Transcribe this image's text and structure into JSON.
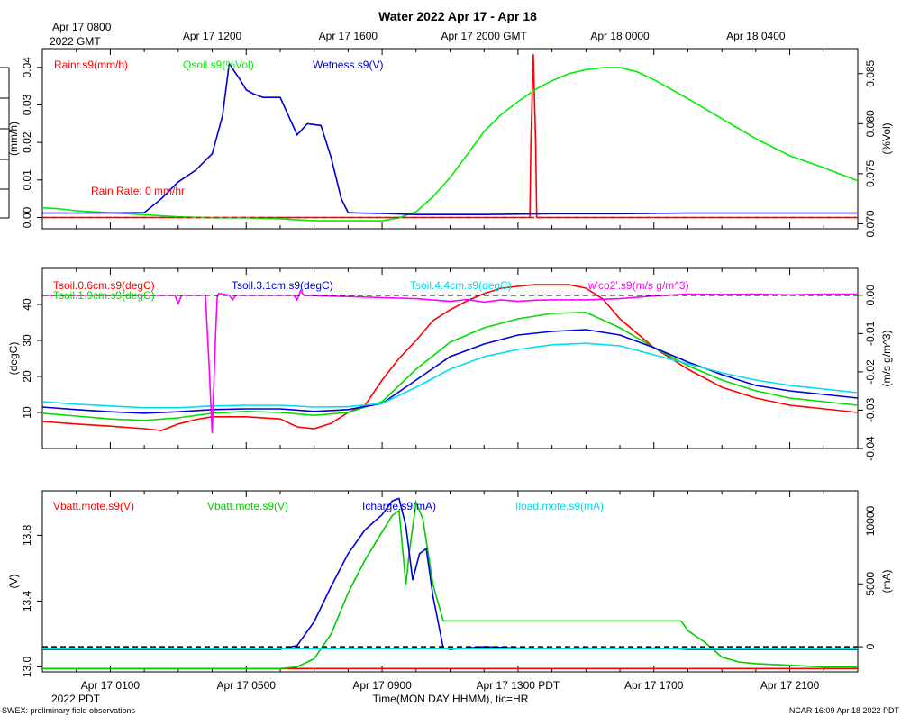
{
  "title": "Water 2022 Apr 17 - Apr 18",
  "top_axis": {
    "origin_line1": "Apr 17 0800",
    "origin_line2": "2022 GMT",
    "ticks": [
      "Apr 17 1200",
      "Apr 17 1600",
      "Apr 17 2000 GMT",
      "Apr 18 0000",
      "Apr 18 0400"
    ]
  },
  "bottom_axis": {
    "ticks": [
      "Apr 17 0100",
      "Apr 17 0500",
      "Apr 17 0900",
      "Apr 17 1300 PDT",
      "Apr 17 1700",
      "Apr 17 2100"
    ],
    "year": "2022 PDT",
    "label": "Time(MON DAY HHMM), tic=HR"
  },
  "footer": {
    "left": "SWEX: preliminary field observations",
    "right": "NCAR 16:09 Apr 18 2022 PDT"
  },
  "chart_data": [
    {
      "type": "line",
      "panel": "water",
      "x_unit": "hours since Apr 17 0000 PDT",
      "xlim": [
        -1,
        23
      ],
      "left_axis": {
        "label": "(mm/h)",
        "lim": [
          -0.003,
          0.045
        ],
        "ticks": [
          "0.00",
          "0.01",
          "0.02",
          "0.03",
          "0.04"
        ]
      },
      "right_axis": {
        "label": "(%Vol)",
        "lim": [
          0.0695,
          0.0875
        ],
        "ticks": [
          "0.070",
          "0.075",
          "0.080",
          "0.085"
        ]
      },
      "annotation": "Rain Rate: 0 mm/hr",
      "reference_line": {
        "axis": "left",
        "y": 0.0,
        "color": "#ff0000",
        "style": "dashed"
      },
      "series": [
        {
          "name": "Rainr.s9(mm/h)",
          "color": "#ff0000",
          "axis": "left",
          "x": [
            -1,
            13.35,
            13.38,
            13.45,
            13.52,
            13.55,
            23
          ],
          "values": [
            0,
            0,
            0.02,
            0.0435,
            0.02,
            0,
            0
          ]
        },
        {
          "name": "Qsoil.s9(%Vol)",
          "color": "#00ee00",
          "axis": "left_offset_right",
          "x": [
            -1,
            -0.5,
            0,
            1,
            2,
            3,
            4,
            5,
            6,
            7,
            8,
            9,
            9.5,
            10,
            10.5,
            11,
            11.5,
            12,
            12.5,
            13,
            13.5,
            14,
            14.5,
            15,
            15.5,
            16,
            16.5,
            17,
            18,
            19,
            20,
            21,
            22,
            23
          ],
          "values": [
            0.0716,
            0.0715,
            0.0713,
            0.0711,
            0.0709,
            0.0707,
            0.0706,
            0.0706,
            0.0705,
            0.0703,
            0.0703,
            0.0703,
            0.0706,
            0.0712,
            0.0727,
            0.0746,
            0.0769,
            0.0792,
            0.0809,
            0.0822,
            0.0834,
            0.0843,
            0.085,
            0.0854,
            0.0856,
            0.0856,
            0.0852,
            0.0844,
            0.0825,
            0.0805,
            0.0785,
            0.0768,
            0.0756,
            0.0743
          ]
        },
        {
          "name": "Wetness.s9(V)",
          "color": "#0000cc",
          "axis": "left",
          "x": [
            -1,
            0,
            1,
            2,
            2.5,
            3,
            3.5,
            4,
            4.3,
            4.5,
            4.8,
            5,
            5.2,
            5.5,
            6,
            6.3,
            6.5,
            6.8,
            7.2,
            7.5,
            7.8,
            8,
            8.3,
            9,
            10,
            12,
            14,
            16,
            18,
            20,
            22,
            23
          ],
          "values": [
            0.0012,
            0.0012,
            0.0012,
            0.0013,
            0.005,
            0.0095,
            0.0125,
            0.017,
            0.027,
            0.041,
            0.037,
            0.034,
            0.033,
            0.032,
            0.032,
            0.026,
            0.022,
            0.025,
            0.0245,
            0.016,
            0.005,
            0.0013,
            0.0012,
            0.0011,
            0.0008,
            0.0008,
            0.001,
            0.001,
            0.0012,
            0.0012,
            0.0012,
            0.0012
          ]
        }
      ]
    },
    {
      "type": "line",
      "panel": "soil_temperature",
      "x_unit": "hours since Apr 17 0000 PDT",
      "xlim": [
        -1,
        23
      ],
      "left_axis": {
        "label": "(degC)",
        "lim": [
          0,
          50
        ],
        "ticks": [
          "10",
          "20",
          "30",
          "40"
        ]
      },
      "right_axis": {
        "label": "(m/s g/m^3)",
        "lim": [
          -0.04,
          0.007
        ],
        "ticks": [
          "-0.04",
          "-0.03",
          "-0.02",
          "-0.01",
          "0.00"
        ]
      },
      "reference_line": {
        "axis": "right",
        "y": 0.0,
        "color": "#000000",
        "style": "dashed"
      },
      "series": [
        {
          "name": "Tsoil.0.6cm.s9(degC)",
          "color": "#ff0000",
          "axis": "left",
          "x": [
            -1,
            0,
            1,
            2,
            2.5,
            3,
            3.5,
            4,
            5,
            6,
            6.5,
            7,
            7.5,
            8,
            8.5,
            9,
            9.5,
            10,
            10.5,
            11,
            11.5,
            12,
            12.5,
            13,
            13.5,
            14,
            14.5,
            15,
            15.5,
            16,
            17,
            18,
            19,
            20,
            21,
            22,
            23
          ],
          "values": [
            7.5,
            6.8,
            6.2,
            5.5,
            5.0,
            6.8,
            8.0,
            8.8,
            8.8,
            8.2,
            6.0,
            5.5,
            7.0,
            10.0,
            12.0,
            19.0,
            25.0,
            30.0,
            35.5,
            38.5,
            41.0,
            43.0,
            44.5,
            45.0,
            45.5,
            45.5,
            45.5,
            44.5,
            41.5,
            36.0,
            28.0,
            22.0,
            17.0,
            14.0,
            12.0,
            11.0,
            10.0
          ]
        },
        {
          "name": "Tsoil.1.9cm.s9(degC)",
          "color": "#00dd00",
          "axis": "left",
          "x": [
            -1,
            0,
            1,
            2,
            3,
            4,
            5,
            6,
            7,
            8,
            9,
            10,
            11,
            12,
            13,
            14,
            15,
            16,
            17,
            18,
            19,
            20,
            21,
            22,
            23
          ],
          "values": [
            9.8,
            9.0,
            8.2,
            7.8,
            8.5,
            9.8,
            10.3,
            10.0,
            9.2,
            10.0,
            13.0,
            22.0,
            29.5,
            33.5,
            36.0,
            37.5,
            37.8,
            33.5,
            28.0,
            23.0,
            19.0,
            16.0,
            14.0,
            13.0,
            12.0
          ]
        },
        {
          "name": "Tsoil.3.1cm.s9(degC)",
          "color": "#0000dd",
          "axis": "left",
          "x": [
            -1,
            0,
            1,
            2,
            3,
            4,
            5,
            6,
            7,
            8,
            9,
            10,
            11,
            12,
            13,
            14,
            15,
            16,
            17,
            18,
            19,
            20,
            21,
            22,
            23
          ],
          "values": [
            11.5,
            10.8,
            10.2,
            9.8,
            10.2,
            10.8,
            11.0,
            11.0,
            10.3,
            10.8,
            12.5,
            19.0,
            25.5,
            29.0,
            31.5,
            32.5,
            33.0,
            31.5,
            28.0,
            24.0,
            20.5,
            17.5,
            16.0,
            15.0,
            14.0
          ]
        },
        {
          "name": "Tsoil.4.4cm.s9(degC)",
          "color": "#00ddee",
          "axis": "left",
          "x": [
            -1,
            0,
            1,
            2,
            3,
            4,
            5,
            6,
            7,
            8,
            9,
            10,
            11,
            12,
            13,
            14,
            15,
            16,
            17,
            18,
            19,
            20,
            21,
            22,
            23
          ],
          "values": [
            13.0,
            12.3,
            11.8,
            11.3,
            11.3,
            11.8,
            12.0,
            12.0,
            11.5,
            11.6,
            12.5,
            17.0,
            22.0,
            25.5,
            27.5,
            28.8,
            29.2,
            28.5,
            26.0,
            23.5,
            21.0,
            19.0,
            17.5,
            16.5,
            15.5
          ]
        },
        {
          "name": "w'co2'.s9(m/s g/m^3)",
          "color": "#ff00ff",
          "axis": "right",
          "x": [
            -1,
            2.9,
            3.0,
            3.1,
            3.8,
            3.9,
            4.0,
            4.1,
            4.15,
            4.2,
            4.5,
            4.6,
            4.7,
            6.4,
            6.5,
            6.6,
            6.7,
            10,
            11,
            11.5,
            12,
            12.5,
            13,
            13.5,
            14,
            15,
            16,
            17,
            18,
            19,
            20,
            21,
            22,
            23
          ],
          "values": [
            0.0,
            0.0,
            -0.0022,
            0.0,
            0.0,
            -0.017,
            -0.036,
            -0.01,
            0.0,
            0.0005,
            0.0,
            -0.0012,
            0.0,
            0.0,
            -0.0012,
            0.0012,
            0.0,
            -0.0009,
            -0.0016,
            -0.0011,
            -0.0018,
            -0.0012,
            -0.0016,
            -0.0013,
            -0.0012,
            -0.0012,
            -0.0009,
            -0.0002,
            0.0003,
            0.0002,
            0.0003,
            0.0001,
            0.0003,
            0.0003
          ]
        }
      ]
    },
    {
      "type": "line",
      "panel": "power",
      "x_unit": "hours since Apr 17 0000 PDT",
      "xlim": [
        -1,
        23
      ],
      "left_axis": {
        "label": "(V)",
        "lim": [
          12.97,
          14.07
        ],
        "ticks": [
          "13.0",
          "13.4",
          "13.8"
        ]
      },
      "right_axis": {
        "label": "(mA)",
        "lim": [
          -2000,
          12400
        ],
        "ticks": [
          "0",
          "5000",
          "10000"
        ]
      },
      "reference_line": {
        "axis": "right",
        "y": 0,
        "color": "#000000",
        "style": "dashed"
      },
      "series": [
        {
          "name": "Vbatt.mote.s9(V)",
          "color": "#ff0000",
          "axis": "left",
          "x": [
            -1,
            23
          ],
          "values": [
            12.99,
            12.99
          ]
        },
        {
          "name": "Vbatt.mote.s9(V)",
          "color": "#00cc00",
          "axis": "left",
          "x": [
            -1,
            0,
            2,
            4,
            5,
            6,
            6.5,
            7,
            7.5,
            8,
            8.5,
            9,
            9.3,
            9.5,
            9.7,
            9.8,
            10,
            10.2,
            10.5,
            10.8,
            11,
            12,
            13,
            14,
            15,
            16,
            17,
            17.8,
            18,
            18.5,
            19,
            19.5,
            20,
            21,
            22,
            23
          ],
          "values": [
            12.99,
            12.99,
            12.99,
            12.99,
            12.99,
            12.99,
            13.0,
            13.05,
            13.2,
            13.45,
            13.65,
            13.82,
            13.92,
            13.95,
            13.5,
            13.7,
            14.0,
            13.9,
            13.5,
            13.28,
            13.28,
            13.28,
            13.28,
            13.28,
            13.28,
            13.28,
            13.28,
            13.28,
            13.22,
            13.15,
            13.06,
            13.03,
            13.02,
            13.01,
            13.0,
            13.0
          ]
        },
        {
          "name": "Icharge.s9(mA)",
          "color": "#0000dd",
          "axis": "right",
          "x": [
            -1,
            0,
            2,
            4,
            5,
            6,
            6.5,
            7,
            7.5,
            8,
            8.5,
            9,
            9.3,
            9.5,
            9.7,
            9.9,
            10.1,
            10.3,
            10.5,
            10.8,
            11,
            12,
            13,
            14,
            15,
            16,
            17,
            18,
            19,
            20,
            21,
            22,
            23
          ],
          "values": [
            -200,
            -200,
            -200,
            -200,
            -200,
            -200,
            100,
            2000,
            4800,
            7400,
            9300,
            10500,
            11600,
            11800,
            9600,
            5300,
            7400,
            7800,
            4000,
            -100,
            -200,
            0,
            -100,
            -150,
            -100,
            -150,
            -100,
            -200,
            -200,
            -200,
            -200,
            -200,
            -200
          ]
        },
        {
          "name": "Iload.mote.s9(mA)",
          "color": "#00ddee",
          "axis": "right",
          "x": [
            -1,
            23
          ],
          "values": [
            -150,
            -150
          ]
        }
      ]
    }
  ]
}
